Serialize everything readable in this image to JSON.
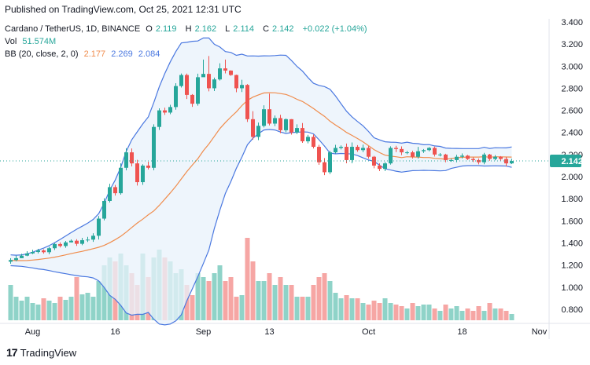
{
  "header": {
    "published": "Published on TradingView.com, Oct 25, 2021 12:31 UTC"
  },
  "legend": {
    "symbol": "Cardano / TetherUS, 1D, BINANCE",
    "o_label": "O",
    "o_value": "2.119",
    "h_label": "H",
    "h_value": "2.162",
    "l_label": "L",
    "l_value": "2.114",
    "c_label": "C",
    "c_value": "2.142",
    "change": "+0.022 (+1.04%)",
    "vol_label": "Vol",
    "vol_value": "51.574M",
    "bb_label": "BB (20, close, 2, 0)",
    "bb_mid": "2.177",
    "bb_upper": "2.269",
    "bb_lower": "2.084"
  },
  "brand": {
    "name": "TradingView"
  },
  "colors": {
    "up": "#26a69a",
    "down": "#ef5350",
    "vol_up": "#8fd3c8",
    "vol_down": "#f6a6a4",
    "bb_mid": "#f08c4c",
    "bb_band": "#4a78e0",
    "bb_fill": "#e8f1fb",
    "price_tag": "#26a69a"
  },
  "chart_data": {
    "type": "candlestick",
    "title": "Cardano / TetherUS, 1D, BINANCE",
    "price_axis": {
      "ticks": [
        "3.400",
        "3.200",
        "3.000",
        "2.800",
        "2.600",
        "2.400",
        "2.200",
        "2.000",
        "1.800",
        "1.600",
        "1.400",
        "1.200",
        "1.000",
        "0.800"
      ],
      "min": 0.7,
      "max": 3.4,
      "last_price": "2.142"
    },
    "time_axis": {
      "ticks": [
        {
          "label": "Aug",
          "index": 0
        },
        {
          "label": "16",
          "index": 15
        },
        {
          "label": "Sep",
          "index": 31
        },
        {
          "label": "13",
          "index": 43
        },
        {
          "label": "Oct",
          "index": 61
        },
        {
          "label": "18",
          "index": 78
        },
        {
          "label": "Nov",
          "index": 92
        }
      ]
    },
    "start_offset": -4,
    "closes": [
      1.245,
      1.262,
      1.285,
      1.305,
      1.318,
      1.332,
      1.316,
      1.352,
      1.39,
      1.372,
      1.405,
      1.42,
      1.392,
      1.425,
      1.43,
      1.465,
      1.62,
      1.78,
      1.905,
      1.85,
      2.08,
      2.22,
      2.12,
      1.95,
      2.1,
      2.08,
      2.45,
      2.6,
      2.58,
      2.63,
      2.82,
      2.92,
      2.74,
      2.66,
      2.9,
      2.93,
      2.8,
      2.88,
      2.98,
      2.96,
      2.92,
      2.8,
      2.83,
      2.52,
      2.36,
      2.46,
      2.61,
      2.48,
      2.53,
      2.42,
      2.52,
      2.4,
      2.44,
      2.32,
      2.36,
      2.27,
      2.13,
      2.04,
      2.22,
      2.26,
      2.27,
      2.15,
      2.27,
      2.24,
      2.26,
      2.18,
      2.1,
      2.07,
      2.12,
      2.26,
      2.25,
      2.22,
      2.22,
      2.18,
      2.23,
      2.24,
      2.26,
      2.2,
      2.2,
      2.15,
      2.15,
      2.18,
      2.19,
      2.16,
      2.15,
      2.13,
      2.2,
      2.16,
      2.18,
      2.16,
      2.12,
      2.142
    ],
    "highs": [
      1.262,
      1.285,
      1.302,
      1.325,
      1.338,
      1.347,
      1.342,
      1.365,
      1.398,
      1.405,
      1.418,
      1.432,
      1.434,
      1.446,
      1.455,
      1.488,
      1.643,
      1.805,
      1.935,
      1.925,
      2.12,
      2.258,
      2.255,
      2.152,
      2.112,
      2.135,
      2.474,
      2.618,
      2.625,
      2.65,
      2.846,
      2.934,
      2.933,
      2.747,
      2.932,
      3.06,
      3.092,
      2.896,
      3.026,
      3.06,
      2.963,
      2.923,
      2.877,
      2.838,
      2.593,
      2.49,
      2.646,
      2.752,
      2.554,
      2.56,
      2.527,
      2.521,
      2.474,
      2.485,
      2.379,
      2.38,
      2.288,
      2.168,
      2.232,
      2.288,
      2.283,
      2.3,
      2.309,
      2.285,
      2.29,
      2.277,
      2.188,
      2.12,
      2.132,
      2.275,
      2.279,
      2.274,
      2.233,
      2.235,
      2.269,
      2.25,
      2.268,
      2.272,
      2.213,
      2.207,
      2.163,
      2.198,
      2.21,
      2.197,
      2.174,
      2.165,
      2.215,
      2.206,
      2.195,
      2.186,
      2.179,
      2.162
    ],
    "lows": [
      1.212,
      1.234,
      1.262,
      1.28,
      1.299,
      1.305,
      1.303,
      1.298,
      1.336,
      1.359,
      1.356,
      1.403,
      1.373,
      1.379,
      1.409,
      1.41,
      1.431,
      1.604,
      1.766,
      1.829,
      1.837,
      2.057,
      2.093,
      1.919,
      1.926,
      2.065,
      2.058,
      2.423,
      2.559,
      2.565,
      2.606,
      2.807,
      2.703,
      2.632,
      2.642,
      2.911,
      2.772,
      2.775,
      2.87,
      2.935,
      2.912,
      2.764,
      2.766,
      2.495,
      2.335,
      2.331,
      2.445,
      2.464,
      2.457,
      2.394,
      2.402,
      2.38,
      2.385,
      2.306,
      2.301,
      2.255,
      2.107,
      2.014,
      2.023,
      2.21,
      2.246,
      2.121,
      2.121,
      2.225,
      2.222,
      2.163,
      2.076,
      2.05,
      2.05,
      2.109,
      2.222,
      2.195,
      2.203,
      2.164,
      2.164,
      2.214,
      2.229,
      2.182,
      2.183,
      2.13,
      2.134,
      2.13,
      2.165,
      2.15,
      2.133,
      2.111,
      2.112,
      2.143,
      2.148,
      2.14,
      2.094,
      2.114
    ],
    "volumes": [
      0.45,
      0.3,
      0.25,
      0.3,
      0.22,
      0.2,
      0.28,
      0.25,
      0.22,
      0.3,
      0.26,
      0.3,
      0.55,
      0.33,
      0.35,
      0.3,
      0.5,
      0.7,
      0.8,
      0.75,
      0.85,
      0.7,
      0.6,
      0.45,
      0.85,
      0.55,
      0.8,
      0.9,
      0.8,
      0.75,
      0.6,
      0.65,
      0.45,
      0.32,
      0.6,
      0.55,
      0.5,
      0.6,
      0.7,
      0.5,
      0.55,
      0.3,
      0.32,
      1.05,
      0.75,
      0.5,
      0.5,
      0.6,
      0.45,
      0.55,
      0.45,
      0.45,
      0.3,
      0.3,
      0.3,
      0.45,
      0.55,
      0.6,
      0.5,
      0.35,
      0.28,
      0.32,
      0.28,
      0.28,
      0.22,
      0.2,
      0.25,
      0.22,
      0.28,
      0.22,
      0.2,
      0.18,
      0.15,
      0.22,
      0.18,
      0.2,
      0.2,
      0.15,
      0.12,
      0.2,
      0.15,
      0.18,
      0.12,
      0.15,
      0.12,
      0.18,
      0.12,
      0.22,
      0.15,
      0.15,
      0.12,
      0.08
    ],
    "bb_mid": [
      1.243,
      1.24,
      1.24,
      1.241,
      1.245,
      1.25,
      1.256,
      1.263,
      1.271,
      1.281,
      1.292,
      1.303,
      1.314,
      1.324,
      1.336,
      1.348,
      1.361,
      1.378,
      1.402,
      1.43,
      1.46,
      1.498,
      1.54,
      1.58,
      1.615,
      1.655,
      1.69,
      1.74,
      1.796,
      1.853,
      1.913,
      1.98,
      2.046,
      2.105,
      2.162,
      2.235,
      2.295,
      2.365,
      2.435,
      2.49,
      2.54,
      2.587,
      2.643,
      2.69,
      2.72,
      2.74,
      2.758,
      2.76,
      2.759,
      2.752,
      2.744,
      2.725,
      2.7,
      2.68,
      2.65,
      2.616,
      2.58,
      2.546,
      2.502,
      2.468,
      2.435,
      2.4,
      2.373,
      2.345,
      2.315,
      2.28,
      2.245,
      2.218,
      2.194,
      2.186,
      2.18,
      2.172,
      2.18,
      2.178,
      2.177,
      2.173,
      2.173,
      2.166,
      2.163,
      2.157,
      2.165,
      2.17,
      2.175,
      2.177,
      2.177,
      2.177,
      2.181,
      2.176,
      2.18,
      2.179,
      2.178,
      2.177
    ],
    "bb_upper": [
      1.292,
      1.289,
      1.292,
      1.301,
      1.316,
      1.335,
      1.353,
      1.376,
      1.403,
      1.432,
      1.463,
      1.494,
      1.524,
      1.551,
      1.579,
      1.613,
      1.665,
      1.76,
      1.878,
      1.97,
      2.085,
      2.23,
      2.334,
      2.406,
      2.477,
      2.54,
      2.67,
      2.814,
      2.934,
      3.04,
      3.132,
      3.21,
      3.216,
      3.225,
      3.228,
      3.256,
      3.255,
      3.198,
      3.173,
      3.132,
      3.124,
      3.098,
      3.109,
      3.092,
      3.093,
      3.091,
      3.094,
      3.093,
      3.096,
      3.1,
      3.098,
      3.051,
      2.998,
      2.955,
      2.897,
      2.845,
      2.826,
      2.815,
      2.791,
      2.73,
      2.66,
      2.592,
      2.541,
      2.499,
      2.46,
      2.409,
      2.352,
      2.333,
      2.316,
      2.312,
      2.311,
      2.303,
      2.312,
      2.302,
      2.299,
      2.289,
      2.29,
      2.278,
      2.274,
      2.259,
      2.256,
      2.255,
      2.254,
      2.254,
      2.254,
      2.254,
      2.266,
      2.255,
      2.262,
      2.261,
      2.26,
      2.269
    ],
    "bb_lower": [
      1.194,
      1.191,
      1.188,
      1.181,
      1.174,
      1.165,
      1.159,
      1.15,
      1.139,
      1.13,
      1.121,
      1.112,
      1.104,
      1.097,
      1.093,
      1.083,
      1.057,
      0.996,
      0.926,
      0.89,
      0.835,
      0.766,
      0.746,
      0.754,
      0.753,
      0.77,
      0.71,
      0.666,
      0.658,
      0.666,
      0.694,
      0.75,
      0.876,
      0.985,
      1.096,
      1.214,
      1.335,
      1.532,
      1.697,
      1.848,
      1.956,
      2.076,
      2.177,
      2.288,
      2.347,
      2.389,
      2.422,
      2.427,
      2.422,
      2.404,
      2.39,
      2.399,
      2.402,
      2.405,
      2.403,
      2.387,
      2.334,
      2.277,
      2.213,
      2.206,
      2.21,
      2.208,
      2.205,
      2.191,
      2.17,
      2.151,
      2.138,
      2.103,
      2.072,
      2.06,
      2.049,
      2.041,
      2.048,
      2.054,
      2.055,
      2.057,
      2.056,
      2.054,
      2.052,
      2.055,
      2.074,
      2.085,
      2.096,
      2.1,
      2.1,
      2.1,
      2.096,
      2.097,
      2.098,
      2.097,
      2.096,
      2.084
    ]
  }
}
